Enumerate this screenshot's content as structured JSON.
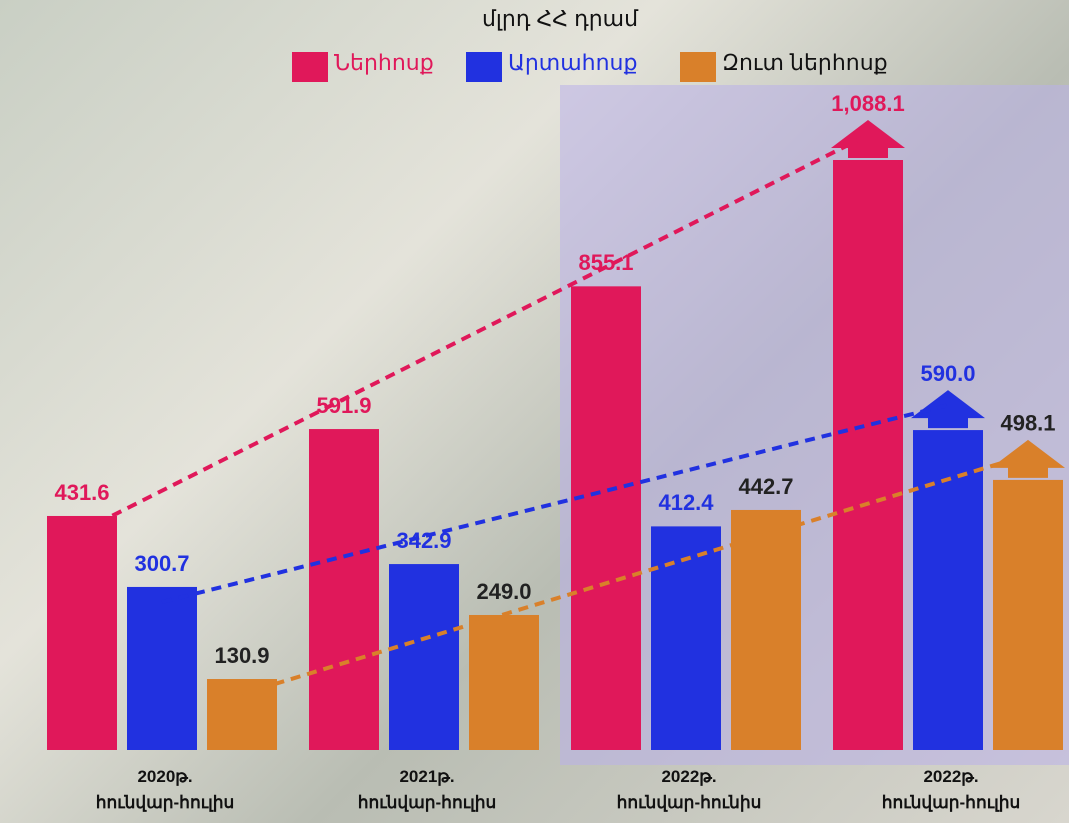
{
  "chart_data": {
    "type": "bar",
    "title": "մլրդ ՀՀ դրամ",
    "categories": [
      "2020թ.\nհունվար-հուլիս",
      "2021թ.\nհունվար-հուլիս",
      "2022թ.\nհունվար-հունիս",
      "2022թ.\nհունվար-հուլիս"
    ],
    "series": [
      {
        "name": "Ներհոսք",
        "color": "#e0185a",
        "values": [
          431.6,
          591.9,
          855.1,
          1088.1
        ],
        "value_labels": [
          "431.6",
          "591.9",
          "855.1",
          "1,088.1"
        ]
      },
      {
        "name": "Արտահոսք",
        "color": "#2131e0",
        "values": [
          300.7,
          342.9,
          412.4,
          590.0
        ],
        "value_labels": [
          "300.7",
          "342.9",
          "412.4",
          "590.0"
        ]
      },
      {
        "name": "Զուտ ներհոսք",
        "color": "#d9802a",
        "values": [
          130.9,
          249.0,
          442.7,
          498.1
        ],
        "value_labels": [
          "130.9",
          "249.0",
          "442.7",
          "498.1"
        ]
      }
    ]
  }
}
